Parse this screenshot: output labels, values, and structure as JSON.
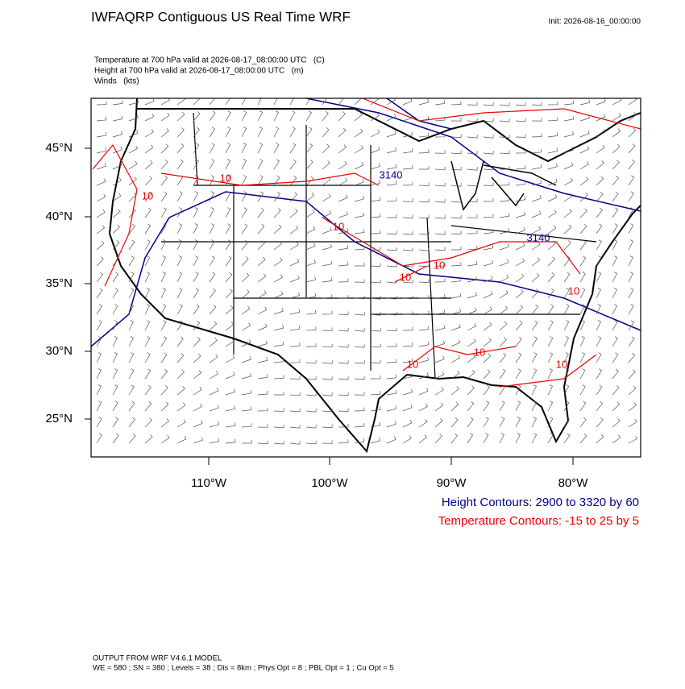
{
  "title": "IWFAQRP Contiguous US Real Time WRF",
  "init": "Init: 2026-08-16_00:00:00",
  "fields": [
    "Temperature at 700 hPa valid at 2026-08-17_08:00:00 UTC   (C)",
    "Height at 700 hPa valid at 2026-08-17_08:00:00 UTC   (m)",
    "Winds   (kts)"
  ],
  "lat_labels": [
    "45°N",
    "40°N",
    "35°N",
    "30°N",
    "25°N"
  ],
  "lon_labels": [
    "110°W",
    "100°W",
    "90°W",
    "80°W"
  ],
  "temperature_contour_labels": [
    "10",
    "10",
    "10",
    "10",
    "10",
    "10",
    "10",
    "10",
    "10"
  ],
  "height_contour_labels": [
    "3140",
    "3140"
  ],
  "height_contours": "Height Contours: 2900 to 3320 by 60",
  "temperature_contours": "Temperature Contours: -15 to 25 by 5",
  "footer": [
    "OUTPUT FROM WRF V4.6.1 MODEL",
    "WE = 580 ; SN = 380 ; Levels = 38 ; Dis = 8km ; Phys Opt = 8 ; PBL Opt = 1 ; Cu Opt = 5"
  ]
}
